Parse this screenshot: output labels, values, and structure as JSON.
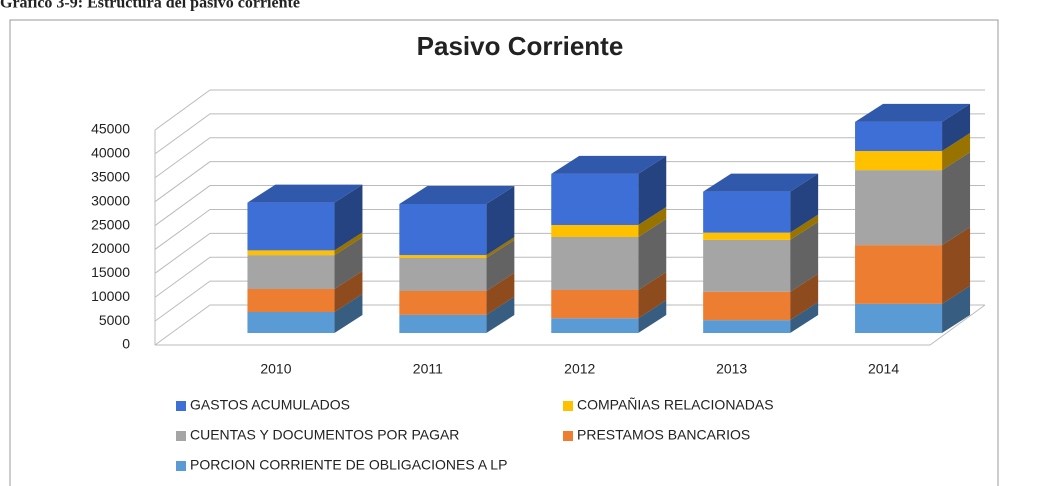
{
  "caption": "Gráfico 3-9: Estructura del pasivo corriente",
  "chart_data": {
    "type": "bar3d_stacked",
    "title": "Pasivo Corriente",
    "categories": [
      "2010",
      "2011",
      "2012",
      "2013",
      "2014"
    ],
    "series": [
      {
        "name": "PORCION CORRIENTE DE OBLIGACIONES A LP",
        "color": "#5b9bd5",
        "values": [
          4400,
          3800,
          3100,
          2700,
          6100
        ]
      },
      {
        "name": "PRESTAMOS BANCARIOS",
        "color": "#ed7d31",
        "values": [
          4800,
          5000,
          5900,
          5900,
          12300
        ]
      },
      {
        "name": "CUENTAS Y DOCUMENTOS POR PAGAR",
        "color": "#a5a5a5",
        "values": [
          7100,
          6900,
          11100,
          10900,
          15700
        ]
      },
      {
        "name": "COMPAÑIAS RELACIONADAS",
        "color": "#ffc000",
        "values": [
          1000,
          600,
          2500,
          1500,
          4000
        ]
      },
      {
        "name": "GASTOS ACUMULADOS",
        "color": "#3d6fd6",
        "values": [
          10000,
          10700,
          10700,
          8600,
          6100
        ]
      }
    ],
    "ylim": [
      0,
      45000
    ],
    "yticks": [
      0,
      5000,
      10000,
      15000,
      20000,
      25000,
      30000,
      35000,
      40000,
      45000
    ],
    "grid": true,
    "legend": "bottom"
  }
}
